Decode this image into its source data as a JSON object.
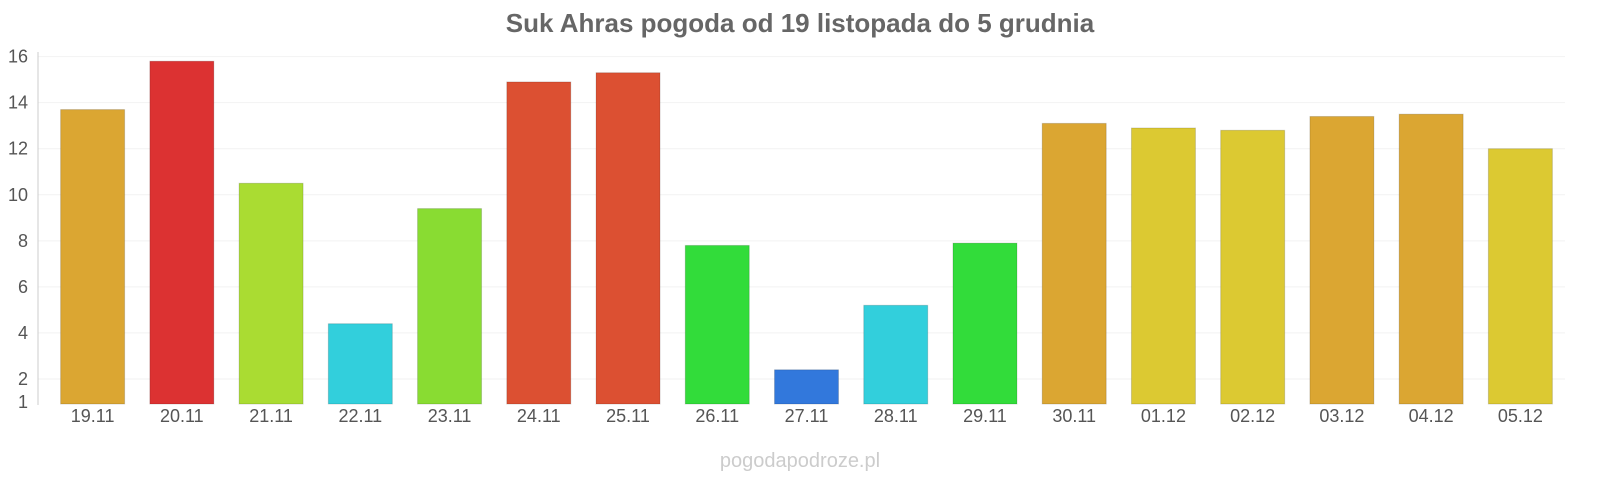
{
  "chart_data": {
    "type": "bar",
    "title": "Suk Ahras pogoda od 19 listopada do 5 grudnia",
    "categories": [
      "19.11",
      "20.11",
      "21.11",
      "22.11",
      "23.11",
      "24.11",
      "25.11",
      "26.11",
      "27.11",
      "28.11",
      "29.11",
      "30.11",
      "01.12",
      "02.12",
      "03.12",
      "04.12",
      "05.12"
    ],
    "values": [
      13.7,
      15.8,
      10.5,
      4.4,
      9.4,
      14.9,
      15.3,
      7.8,
      2.4,
      5.2,
      7.9,
      13.1,
      12.9,
      12.8,
      13.4,
      13.5,
      12.0
    ],
    "colors": [
      "#dba632",
      "#dc3232",
      "#aadc32",
      "#32cfdc",
      "#89dc32",
      "#dc5032",
      "#dc5032",
      "#32dc3a",
      "#3278dc",
      "#32cfdc",
      "#32dc3a",
      "#dba632",
      "#dcc932",
      "#dcc932",
      "#dba632",
      "#dba632",
      "#dcc932"
    ],
    "y_ticks": [
      1,
      2,
      4,
      6,
      8,
      10,
      12,
      14,
      16
    ],
    "ylim": [
      1,
      16.2
    ],
    "xlabel": "",
    "ylabel": "",
    "grid": true
  },
  "watermark": "pogodapodroze.pl"
}
